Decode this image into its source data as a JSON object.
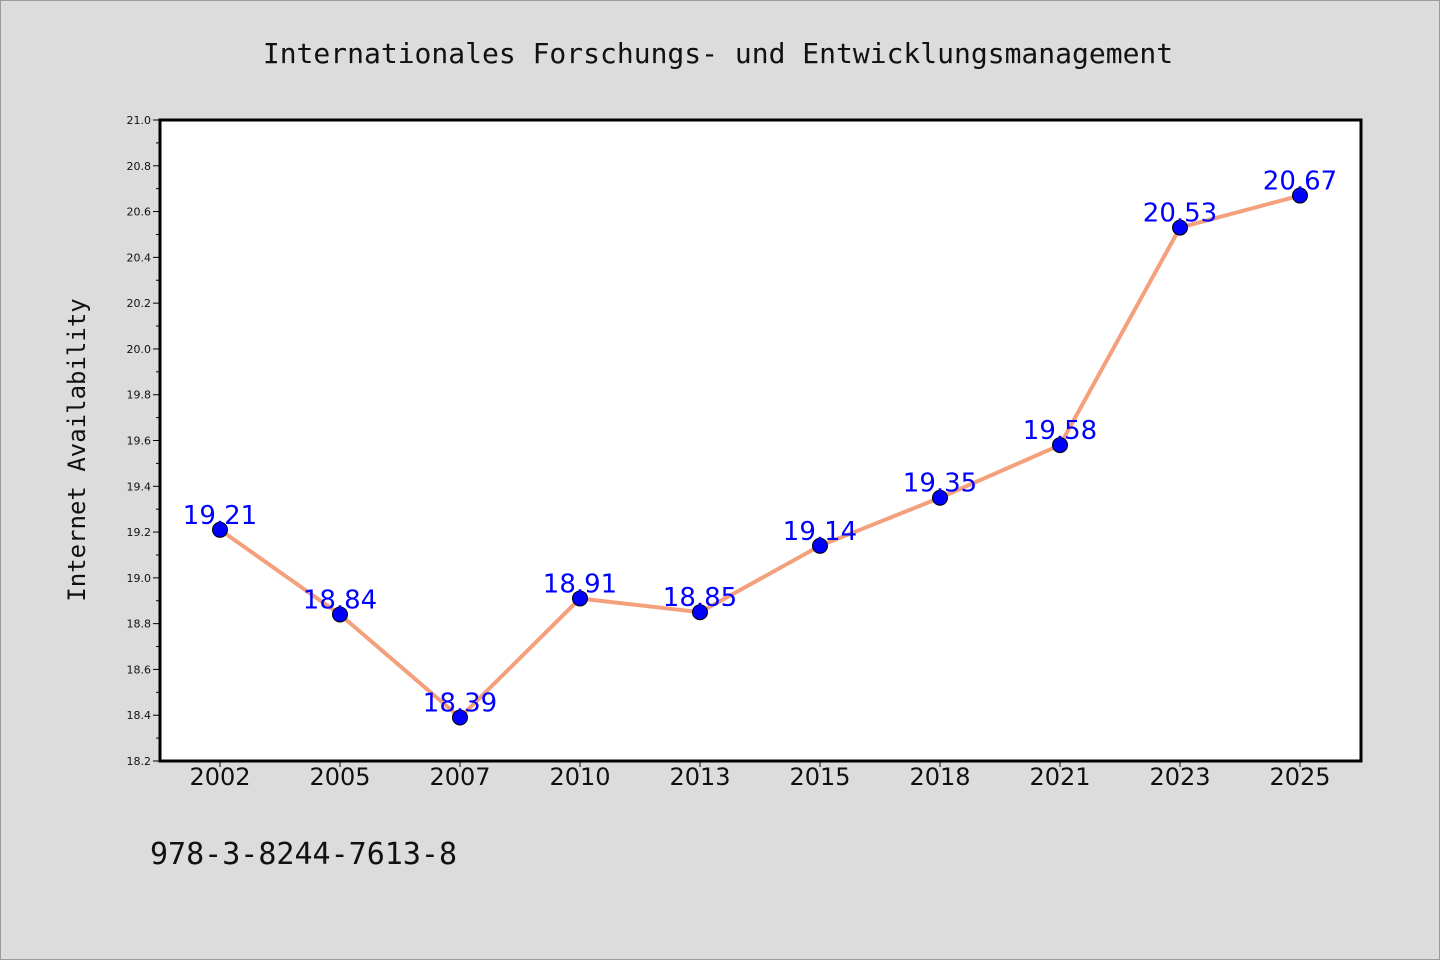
{
  "chart_data": {
    "type": "line",
    "title": "Internationales Forschungs- und Entwicklungsmanagement",
    "xlabel": "",
    "ylabel": "Internet Availability",
    "categories": [
      "2002",
      "2005",
      "2007",
      "2010",
      "2013",
      "2015",
      "2018",
      "2021",
      "2023",
      "2025"
    ],
    "series": [
      {
        "values": [
          19.21,
          18.84,
          18.39,
          18.91,
          18.85,
          19.14,
          19.35,
          19.58,
          20.53,
          20.67
        ]
      }
    ],
    "data_labels": [
      "19.21",
      "18.84",
      "18.39",
      "18.91",
      "18.85",
      "19.14",
      "19.35",
      "19.58",
      "20.53",
      "20.67"
    ],
    "ylim": [
      18.2,
      21.0
    ],
    "y_ticks": [
      "18.2",
      "18.4",
      "18.6",
      "18.8",
      "19.0",
      "19.2",
      "19.4",
      "19.6",
      "19.8",
      "20.0",
      "20.2",
      "20.4",
      "20.6",
      "20.8",
      "21.0"
    ],
    "grid": false,
    "legend": "none",
    "line_color": "#f4a07c",
    "marker_color": "#0000ff"
  },
  "footer": {
    "isbn": "978-3-8244-7613-8"
  }
}
